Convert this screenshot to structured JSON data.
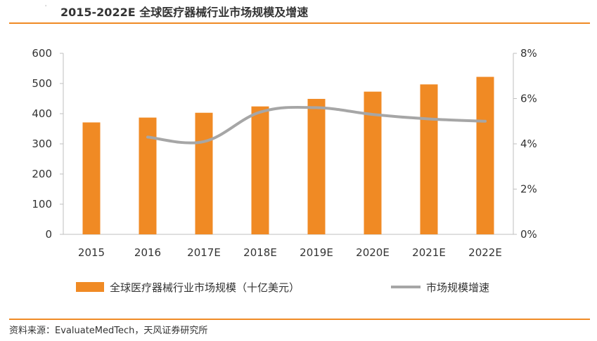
{
  "header": {
    "title": "2015-2022E 全球医疗器械行业市场规模及增速",
    "marker": "'"
  },
  "source": "资料来源：EvaluateMedTech，天风证券研究所",
  "colors": {
    "bar": "#f08a24",
    "line": "#a6a6a6",
    "axis": "#bfbfbf",
    "text": "#333333",
    "rule": "#f08a24"
  },
  "chart_data": {
    "type": "bar",
    "categories": [
      "2015",
      "2016",
      "2017E",
      "2018E",
      "2019E",
      "2020E",
      "2021E",
      "2022E"
    ],
    "series": [
      {
        "name": "全球医疗器械行业市场规模（十亿美元）",
        "type": "bar",
        "axis": "left",
        "values": [
          371,
          387,
          403,
          424,
          449,
          473,
          497,
          522
        ]
      },
      {
        "name": "市场规模增速",
        "type": "line",
        "axis": "right",
        "values": [
          null,
          4.3,
          4.1,
          5.4,
          5.6,
          5.3,
          5.1,
          5.0
        ]
      }
    ],
    "y_left": {
      "min": 0,
      "max": 600,
      "ticks": [
        0,
        100,
        200,
        300,
        400,
        500,
        600
      ]
    },
    "y_right": {
      "min": 0,
      "max": 8,
      "ticks": [
        0,
        2,
        4,
        6,
        8
      ],
      "tick_labels": [
        "0%",
        "2%",
        "4%",
        "6%",
        "8%"
      ]
    },
    "legend": {
      "position": "bottom",
      "items": [
        "全球医疗器械行业市场规模（十亿美元）",
        "市场规模增速"
      ]
    }
  }
}
